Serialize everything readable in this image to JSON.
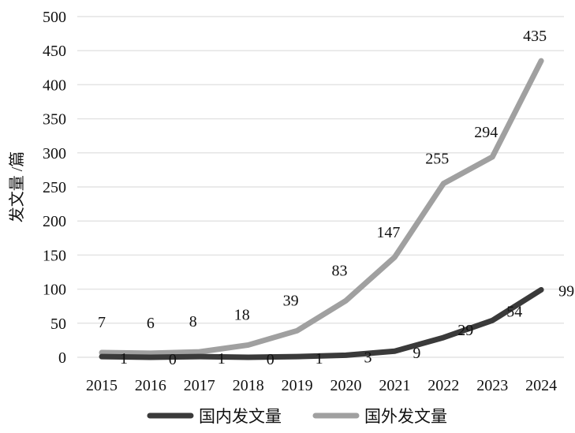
{
  "chart_data": {
    "type": "line",
    "title": "",
    "xlabel": "",
    "ylabel": "发文量 /篇",
    "ylim": [
      0,
      500
    ],
    "yticks": [
      0,
      50,
      100,
      150,
      200,
      250,
      300,
      350,
      400,
      450,
      500
    ],
    "categories": [
      "2015",
      "2016",
      "2017",
      "2018",
      "2019",
      "2020",
      "2021",
      "2022",
      "2023",
      "2024"
    ],
    "grid": true,
    "legend_position": "bottom",
    "series": [
      {
        "name": "国内发文量",
        "color": "#3a3a3a",
        "values": [
          1,
          0,
          1,
          0,
          1,
          3,
          9,
          29,
          54,
          99
        ]
      },
      {
        "name": "国外发文量",
        "color": "#a0a0a0",
        "values": [
          7,
          6,
          8,
          18,
          39,
          83,
          147,
          255,
          294,
          435
        ]
      }
    ]
  }
}
